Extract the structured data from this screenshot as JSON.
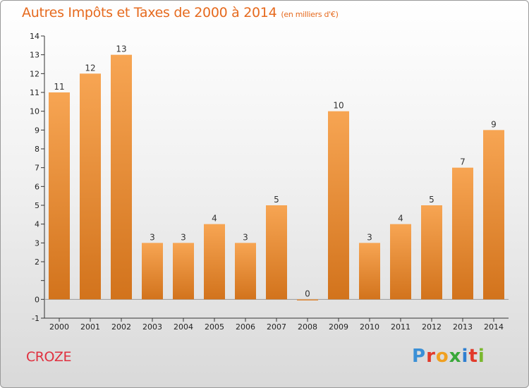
{
  "header": {
    "title": "Autres Impôts et Taxes de 2000 à 2014",
    "unit": "(en milliers d'€)"
  },
  "footer": {
    "commune": "CROZE",
    "logo_text": "Proxiti",
    "logo_colors": [
      "#3a8fd6",
      "#e23a2a",
      "#f0a020",
      "#39a83a",
      "#2f7fd0",
      "#e23a2a",
      "#7ab82e"
    ]
  },
  "colors": {
    "bar_light": "#f7a553",
    "bar_dark": "#d2731c",
    "title": "#e66a1e",
    "commune": "#e0303f"
  },
  "chart_data": {
    "type": "bar",
    "categories": [
      "2000",
      "2001",
      "2002",
      "2003",
      "2004",
      "2005",
      "2006",
      "2007",
      "2008",
      "2009",
      "2010",
      "2011",
      "2012",
      "2013",
      "2014"
    ],
    "values": [
      11,
      12,
      13,
      3,
      3,
      4,
      3,
      5,
      0,
      10,
      3,
      4,
      5,
      7,
      9
    ],
    "data_labels": [
      "11",
      "12",
      "13",
      "3",
      "3",
      "4",
      "3",
      "5",
      "0",
      "10",
      "3",
      "4",
      "5",
      "7",
      "9"
    ],
    "y_ticks": [
      "-1",
      "0",
      "",
      "2",
      "3",
      "4",
      "5",
      "6",
      "7",
      "8",
      "9",
      "10",
      "11",
      "12",
      "13",
      "14"
    ],
    "ylim": [
      -1,
      14
    ],
    "title": "Autres Impôts et Taxes de 2000 à 2014",
    "xlabel": "",
    "ylabel": "",
    "grid": false
  }
}
